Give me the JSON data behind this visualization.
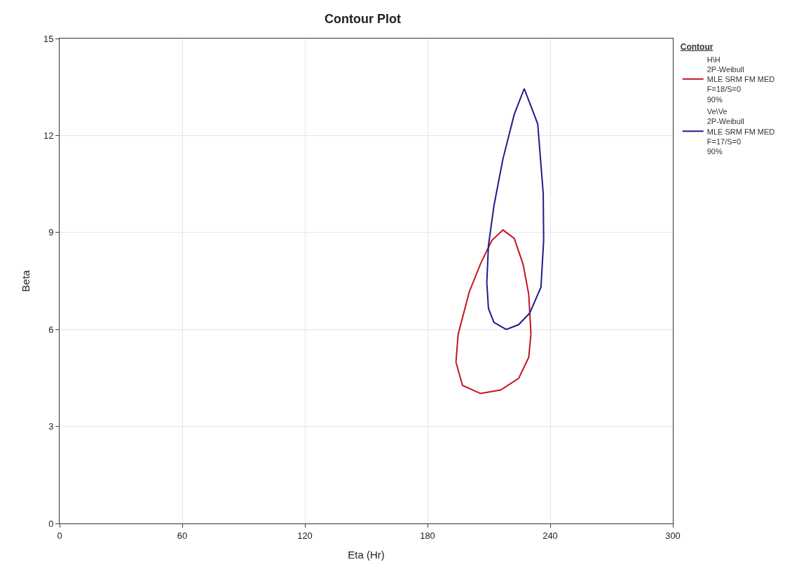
{
  "chart_data": {
    "type": "line",
    "title": "Contour Plot",
    "xlabel": "Eta (Hr)",
    "ylabel": "Beta",
    "legend_title": "Contour",
    "xlim": [
      0,
      300
    ],
    "xticks": [
      0,
      60,
      120,
      180,
      240,
      300
    ],
    "ylim": [
      0,
      15
    ],
    "yticks": [
      0,
      3,
      6,
      9,
      12,
      15
    ],
    "grid": true,
    "legend": "top right",
    "marker": "none",
    "line_style": "solid",
    "series": [
      {
        "name": "H\\H\n2P-Weibull\nMLE SRM FM MED\nF=18/S=0\n90%",
        "color": "#c0161c",
        "x": [
          193.9,
          195.0,
          200.4,
          205.9,
          211.4,
          216.9,
          222.4,
          226.7,
          229.5,
          230.6,
          null,
          193.9,
          197.1,
          205.9,
          215.8,
          224.6,
          229.5,
          230.6
        ],
        "values": [
          4.99,
          5.86,
          7.16,
          8.03,
          8.75,
          9.08,
          8.82,
          8.03,
          7.09,
          5.86,
          null,
          4.99,
          4.27,
          4.02,
          4.13,
          4.49,
          5.14,
          5.86
        ]
      },
      {
        "name": "Ve\\Ve\n2P-Weibull\nMLE SRM FM MED\nF=17/S=0\n90%",
        "color": "#1c1c8c",
        "x": [
          209.0,
          209.8,
          212.5,
          216.9,
          222.4,
          227.3,
          233.9,
          236.6,
          236.8,
          null,
          209.0,
          209.8,
          212.5,
          218.5,
          224.6,
          230.0,
          235.5,
          236.8
        ],
        "values": [
          7.45,
          8.6,
          9.83,
          11.28,
          12.65,
          13.45,
          12.36,
          10.2,
          8.76,
          null,
          7.45,
          6.65,
          6.22,
          6.0,
          6.15,
          6.51,
          7.31,
          8.76
        ]
      }
    ]
  }
}
